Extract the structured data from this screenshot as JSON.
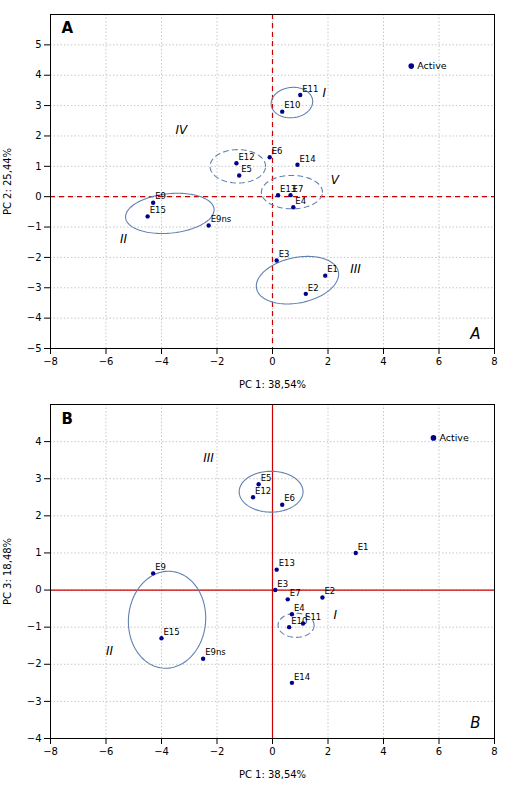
{
  "chart_data": [
    {
      "type": "scatter",
      "xlabel": "PC 1: 38,54%",
      "ylabel": "PC 2: 25,44%",
      "labels": [
        "E1",
        "E2",
        "E3",
        "E4",
        "E5",
        "E6",
        "E7",
        "E9",
        "E9ns",
        "E10",
        "E11",
        "E12",
        "E13",
        "E14",
        "E15"
      ],
      "x": [
        1.9,
        1.2,
        0.15,
        0.75,
        -1.2,
        -0.1,
        0.65,
        -4.3,
        -2.3,
        0.35,
        1.0,
        -1.3,
        0.2,
        0.9,
        -4.5
      ],
      "y": [
        -2.6,
        -3.2,
        -2.1,
        -0.35,
        0.7,
        1.3,
        0.05,
        -0.2,
        -0.95,
        2.8,
        3.35,
        1.1,
        0.05,
        1.05,
        -0.65
      ],
      "color": "#00008B",
      "active": {
        "x": 5.0,
        "y": 4.3,
        "label": "Active"
      },
      "ellipses": [
        {
          "cx": 0.7,
          "cy": 3.1,
          "width": 1.5,
          "height": 1.0,
          "angle": 5,
          "line_style": "solid"
        },
        {
          "cx": -3.7,
          "cy": -0.55,
          "width": 3.2,
          "height": 1.3,
          "angle": 5,
          "line_style": "solid"
        },
        {
          "cx": 0.9,
          "cy": -2.75,
          "width": 3.0,
          "height": 1.5,
          "angle": 10,
          "line_style": "solid"
        },
        {
          "cx": -1.25,
          "cy": 1.0,
          "width": 2.0,
          "height": 1.1,
          "angle": 0,
          "line_style": "dashed"
        },
        {
          "cx": 0.7,
          "cy": 0.15,
          "width": 2.2,
          "height": 1.1,
          "angle": 0,
          "line_style": "dashed"
        }
      ],
      "ellipse_color": "#6080B0",
      "group_labels": [
        {
          "text": "I",
          "x": 1.8,
          "y": 3.2
        },
        {
          "text": "II",
          "x": -5.5,
          "y": -1.6
        },
        {
          "text": "III",
          "x": 2.8,
          "y": -2.6
        },
        {
          "text": "IV",
          "x": -3.5,
          "y": 2.0
        },
        {
          "text": "V",
          "x": 2.1,
          "y": 0.35
        }
      ],
      "panel_label": {
        "text": "A",
        "x": -7.6,
        "y": 5.55
      },
      "corner_label": {
        "text": "A",
        "x": 7.5,
        "y": -4.8
      },
      "reference_lines": {
        "x": 0,
        "y": 0,
        "color": "#CC0000",
        "line_style": "dashed"
      },
      "xlim": [
        -8,
        8
      ],
      "ylim": [
        -5,
        6
      ],
      "xticks": [
        -8,
        -6,
        -4,
        -2,
        0,
        2,
        4,
        6,
        8
      ],
      "yticks": [
        -5,
        -4,
        -3,
        -2,
        -1,
        0,
        1,
        2,
        3,
        4,
        5
      ],
      "grid": true
    },
    {
      "type": "scatter",
      "xlabel": "PC 1: 38,54%",
      "ylabel": "PC 3: 18,48%",
      "labels": [
        "E1",
        "E2",
        "E3",
        "E4",
        "E5",
        "E6",
        "E7",
        "E9",
        "E9ns",
        "E10",
        "E11",
        "E12",
        "E13",
        "E14",
        "E15"
      ],
      "x": [
        3.0,
        1.8,
        0.1,
        0.7,
        -0.5,
        0.35,
        0.55,
        -4.3,
        -2.5,
        0.6,
        1.1,
        -0.7,
        0.15,
        0.7,
        -4.0
      ],
      "y": [
        1.0,
        -0.2,
        0.0,
        -0.65,
        2.85,
        2.3,
        -0.25,
        0.45,
        -1.85,
        -1.0,
        -0.9,
        2.5,
        0.55,
        -2.5,
        -1.3
      ],
      "color": "#00008B",
      "active": {
        "x": 5.8,
        "y": 4.1,
        "label": "Active"
      },
      "ellipses": [
        {
          "cx": 0.85,
          "cy": -0.95,
          "width": 1.3,
          "height": 0.65,
          "angle": 0,
          "line_style": "dashed"
        },
        {
          "cx": -3.8,
          "cy": -0.8,
          "width": 2.8,
          "height": 2.6,
          "angle": 15,
          "line_style": "solid"
        },
        {
          "cx": -0.05,
          "cy": 2.65,
          "width": 2.3,
          "height": 1.1,
          "angle": 0,
          "line_style": "solid"
        }
      ],
      "ellipse_color": "#6080B0",
      "group_labels": [
        {
          "text": "I",
          "x": 2.2,
          "y": -0.85
        },
        {
          "text": "II",
          "x": -6.0,
          "y": -1.8
        },
        {
          "text": "III",
          "x": -2.5,
          "y": 3.4
        }
      ],
      "panel_label": {
        "text": "B",
        "x": -7.6,
        "y": 4.6
      },
      "corner_label": {
        "text": "B",
        "x": 7.5,
        "y": -3.8
      },
      "reference_lines": {
        "x": 0,
        "y": 0,
        "color": "#CC0000",
        "line_style": "solid"
      },
      "xlim": [
        -8,
        8
      ],
      "ylim": [
        -4,
        5
      ],
      "xticks": [
        -8,
        -6,
        -4,
        -2,
        0,
        2,
        4,
        6,
        8
      ],
      "yticks": [
        -4,
        -3,
        -2,
        -1,
        0,
        1,
        2,
        3,
        4
      ],
      "grid": true
    }
  ]
}
